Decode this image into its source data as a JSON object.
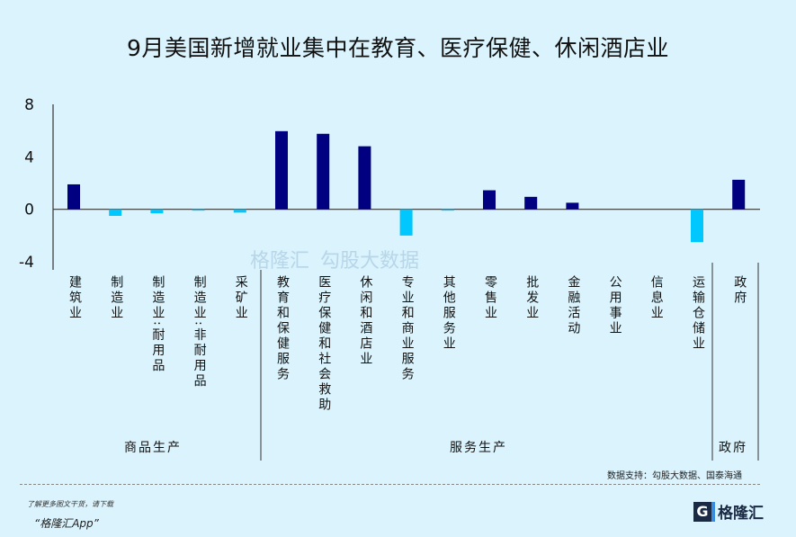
{
  "chart_data": {
    "type": "bar",
    "title": "9月美国新增就业集中在教育、医疗保健、休闲酒店业",
    "categories": [
      "建筑业",
      "制造业",
      "制造业:耐用品",
      "制造业:非耐用品",
      "采矿业",
      "教育和保健服务",
      "医疗保健和社会救助",
      "休闲和酒店业",
      "专业和商业服务",
      "其他服务业",
      "零售业",
      "批发业",
      "金融活动",
      "公用事业",
      "信息业",
      "运输仓储业",
      "政府"
    ],
    "values": [
      1.9,
      -0.5,
      -0.3,
      -0.1,
      -0.25,
      5.95,
      5.75,
      4.8,
      -2.0,
      -0.1,
      1.45,
      0.95,
      0.5,
      0,
      0,
      -2.5,
      2.25
    ],
    "ylim": [
      -4,
      8
    ],
    "yticks": [
      "8",
      "4",
      "0",
      "-4"
    ],
    "groups": [
      {
        "label": "商品生产"
      },
      {
        "label": "服务生产"
      },
      {
        "label": "政府"
      }
    ],
    "colors": {
      "positive": "#000080",
      "negative": "#00c8ff"
    }
  },
  "source": "数据支持：勾股大数据、国泰海通",
  "watermark": {
    "brand": "格隆汇",
    "data": "勾股大数据"
  },
  "footer": {
    "line1": "了解更多图文干货，请下载",
    "line2": "“格隆汇App”",
    "logo": "格隆汇"
  }
}
